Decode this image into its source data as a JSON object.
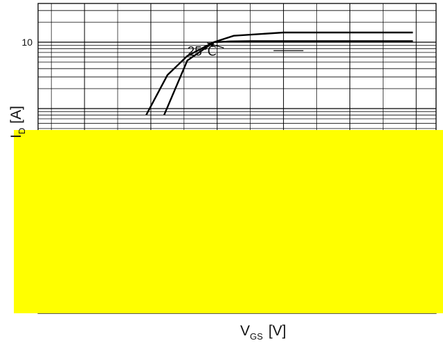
{
  "chart_data": {
    "type": "line",
    "title": "",
    "xlabel_main": "V",
    "xlabel_sub": "GS",
    "xlabel_unit": "[V]",
    "ylabel_main": "I",
    "ylabel_sub": "D",
    "ylabel_unit": "[A]",
    "y_scale": "log",
    "y_ticks": [
      {
        "value": 10,
        "label": "10"
      }
    ],
    "annotation": {
      "text": "25℃",
      "points_to_series": "25C",
      "arrow_from": [
        4.1,
        8.2
      ],
      "arrow_to": [
        3.85,
        9.7
      ]
    },
    "series": [
      {
        "key": "high",
        "x": [
          2.93,
          3.25,
          3.55,
          3.95,
          4.25,
          5.0,
          6.0,
          6.95
        ],
        "y": [
          0.8,
          3.2,
          6.2,
          10.0,
          12.5,
          14.0,
          14.0,
          14.0
        ]
      },
      {
        "key": "25C",
        "x": [
          3.2,
          3.55,
          3.95,
          4.2,
          4.5,
          5.0,
          6.0,
          6.95
        ],
        "y": [
          0.8,
          5.3,
          10.0,
          10.3,
          10.4,
          10.4,
          10.4,
          10.4
        ]
      }
    ],
    "colors": {
      "line": "#000000",
      "grid": "#000000",
      "overlay": "#ffff00"
    }
  }
}
